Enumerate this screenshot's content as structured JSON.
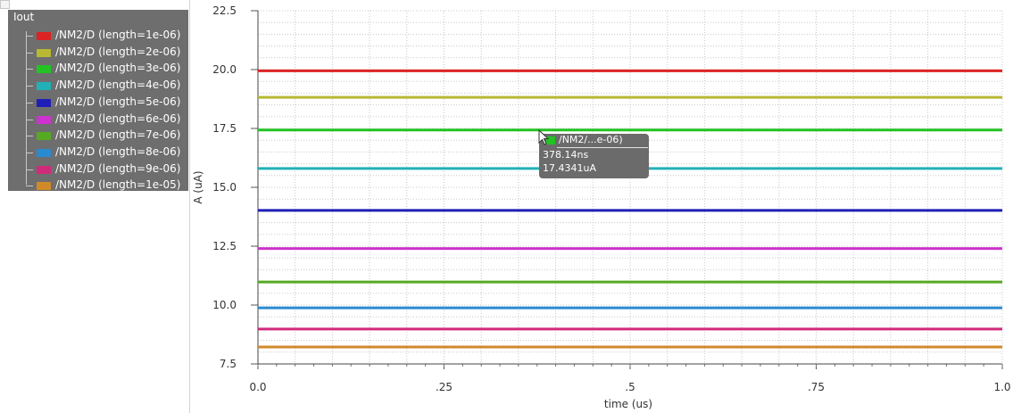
{
  "legend": {
    "title": "Iout",
    "items": [
      {
        "label": "/NM2/D (length=1e-06)",
        "color": "#dd2222"
      },
      {
        "label": "/NM2/D (length=2e-06)",
        "color": "#b8b833"
      },
      {
        "label": "/NM2/D (length=3e-06)",
        "color": "#22c322"
      },
      {
        "label": "/NM2/D (length=4e-06)",
        "color": "#22b0b8"
      },
      {
        "label": "/NM2/D (length=5e-06)",
        "color": "#1f1fb8"
      },
      {
        "label": "/NM2/D (length=6e-06)",
        "color": "#cc33cc"
      },
      {
        "label": "/NM2/D (length=7e-06)",
        "color": "#55aa22"
      },
      {
        "label": "/NM2/D (length=8e-06)",
        "color": "#2a8ad0"
      },
      {
        "label": "/NM2/D (length=9e-06)",
        "color": "#d02a7a"
      },
      {
        "label": "/NM2/D (length=1e-05)",
        "color": "#d08a2a"
      }
    ]
  },
  "tooltip": {
    "series": "/NM2/...e-06)",
    "x": "378.14ns",
    "y": "17.4341uA"
  },
  "chart_data": {
    "type": "line",
    "xlabel": "time (us)",
    "ylabel": "A (uA)",
    "xlim": [
      0.0,
      1.0
    ],
    "ylim": [
      7.5,
      22.5
    ],
    "x_ticks": [
      0.0,
      0.25,
      0.5,
      0.75,
      1.0
    ],
    "x_tick_labels": [
      "0.0",
      ".25",
      ".5",
      ".75",
      "1.0"
    ],
    "y_ticks": [
      7.5,
      10.0,
      12.5,
      15.0,
      17.5,
      20.0,
      22.5
    ],
    "y_tick_labels": [
      "7.5",
      "10.0",
      "12.5",
      "15.0",
      "17.5",
      "20.0",
      "22.5"
    ],
    "grid": true,
    "legend_position": "top-left",
    "x": [
      0.0,
      1.0
    ],
    "series": [
      {
        "name": "/NM2/D (length=1e-06)",
        "values": [
          19.95,
          19.95
        ],
        "color": "#dd2222"
      },
      {
        "name": "/NM2/D (length=2e-06)",
        "values": [
          18.82,
          18.82
        ],
        "color": "#b8b833"
      },
      {
        "name": "/NM2/D (length=3e-06)",
        "values": [
          17.4341,
          17.4341
        ],
        "color": "#22c322"
      },
      {
        "name": "/NM2/D (length=4e-06)",
        "values": [
          15.8,
          15.8
        ],
        "color": "#22b0b8"
      },
      {
        "name": "/NM2/D (length=5e-06)",
        "values": [
          14.02,
          14.02
        ],
        "color": "#1f1fb8"
      },
      {
        "name": "/NM2/D (length=6e-06)",
        "values": [
          12.4,
          12.4
        ],
        "color": "#cc33cc"
      },
      {
        "name": "/NM2/D (length=7e-06)",
        "values": [
          10.98,
          10.98
        ],
        "color": "#55aa22"
      },
      {
        "name": "/NM2/D (length=8e-06)",
        "values": [
          9.88,
          9.88
        ],
        "color": "#2a8ad0"
      },
      {
        "name": "/NM2/D (length=9e-06)",
        "values": [
          8.98,
          8.98
        ],
        "color": "#d02a7a"
      },
      {
        "name": "/NM2/D (length=1e-05)",
        "values": [
          8.22,
          8.22
        ],
        "color": "#d08a2a"
      }
    ]
  }
}
